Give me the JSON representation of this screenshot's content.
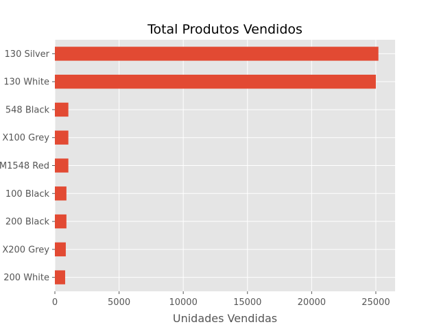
{
  "chart_data": {
    "type": "bar",
    "orientation": "horizontal",
    "title": "Total Produtos Vendidos",
    "xlabel": "Unidades Vendidas",
    "ylabel": "",
    "categories": [
      "130 Silver",
      "130 White",
      "548 Black",
      "X100 Grey",
      "M1548 Red",
      "100 Black",
      "200 Black",
      "X200 Grey",
      "200 White"
    ],
    "values": [
      25200,
      25000,
      1050,
      1050,
      1050,
      900,
      900,
      850,
      800
    ],
    "xlim": [
      0,
      26500
    ],
    "xticks": [
      "0",
      "5000",
      "10000",
      "15000",
      "20000",
      "25000"
    ],
    "grid": true,
    "style": "ggplot",
    "bar_color": "#E24A33",
    "background_color": "#E5E5E5",
    "grid_color": "#FFFFFF"
  }
}
